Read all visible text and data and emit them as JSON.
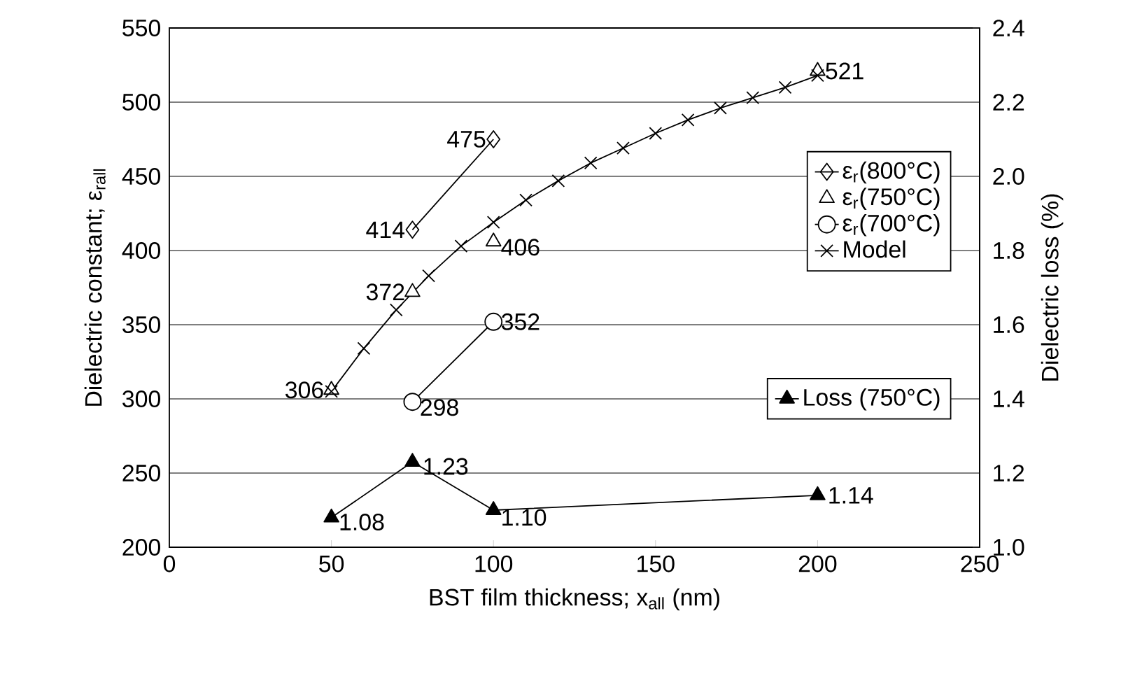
{
  "chart_data": {
    "type": "line",
    "xlabel": "BST film thickness; x$_{all}$ (nm)",
    "ylabel": "Dielectric constant; ε$_{rall}$",
    "y2label": "Dielectric loss (%)",
    "xlim": [
      0,
      250
    ],
    "xticks": [
      0,
      50,
      100,
      150,
      200,
      250
    ],
    "ylim": [
      200,
      550
    ],
    "yticks": [
      200,
      250,
      300,
      350,
      400,
      450,
      500,
      550
    ],
    "y2lim": [
      1.0,
      2.4
    ],
    "y2ticks": [
      {
        "value": 1.0,
        "label": "1.0"
      },
      1.2,
      1.4,
      1.6,
      1.8,
      {
        "value": 2.0,
        "label": "2.0"
      },
      2.2,
      2.4
    ],
    "grid": "y",
    "legend": "right",
    "series": [
      {
        "name": "ε$_{r}$(800°C)",
        "marker": "diamond",
        "color": "#000000",
        "x": [
          75,
          100
        ],
        "values": [
          414,
          475
        ],
        "value_labels": [
          "414",
          "475"
        ]
      },
      {
        "name": "ε$_{r}$(750°C)",
        "type": "scatter",
        "marker": "triangle",
        "color": "#000000",
        "x": [
          50,
          75,
          100,
          200
        ],
        "values": [
          306,
          372,
          406,
          521
        ],
        "value_labels": [
          "306",
          "372",
          "406",
          "521"
        ]
      },
      {
        "name": "ε$_{r}$(700°C)",
        "marker": "circle",
        "color": "#000000",
        "x": [
          75,
          100
        ],
        "values": [
          298,
          352
        ],
        "value_labels": [
          "298",
          "352"
        ]
      },
      {
        "name": "Model",
        "marker": "cross",
        "color": "#000000",
        "x": [
          50,
          60,
          70,
          80,
          90,
          100,
          110,
          120,
          130,
          140,
          150,
          160,
          170,
          180,
          190,
          200
        ],
        "values": [
          305,
          334,
          360,
          383,
          403,
          419,
          434,
          447,
          459,
          469,
          479,
          488,
          496,
          503,
          510,
          518
        ]
      },
      {
        "name": "Loss (750°C)",
        "marker": "triangle",
        "axis": "y2",
        "color": "#000000",
        "x": [
          50,
          75,
          100,
          200
        ],
        "values": [
          1.08,
          1.23,
          1.1,
          1.14
        ],
        "value_labels": [
          "1.08",
          "1.23",
          "1.10",
          "1.14"
        ]
      }
    ]
  }
}
